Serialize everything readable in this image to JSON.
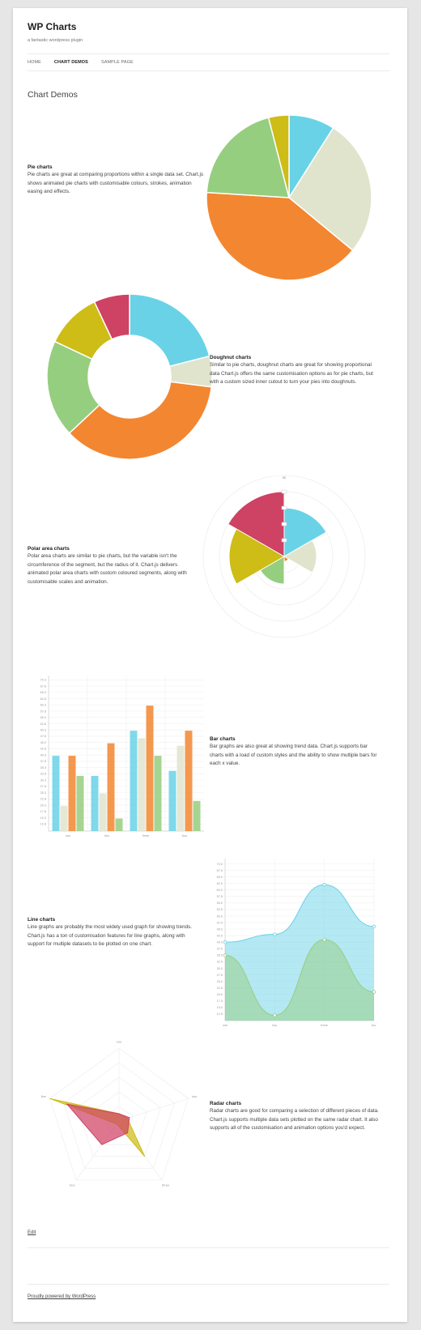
{
  "site": {
    "title": "WP Charts",
    "description": "a fantastic wordpress plugin"
  },
  "nav": {
    "items": [
      "HOME",
      "CHART DEMOS",
      "SAMPLE PAGE"
    ],
    "current": "CHART DEMOS"
  },
  "page_title": "Chart Demos",
  "colors": {
    "blue": "#69D2E7",
    "beige": "#E0E4CC",
    "orange": "#F38630",
    "green": "#96CE7F",
    "yellow": "#CEBC17",
    "red": "#CE4264"
  },
  "sections": {
    "pie": {
      "title": "Pie charts",
      "text": "Pie charts are great at comparing proportions within a single data set.  Chart.js shows animated pie charts with customisable colours, strokes, animation easing and effects."
    },
    "doughnut": {
      "title": "Doughnut charts",
      "text": "Similar to pie charts, doughnut charts are great for showing proportional data Chart.js offers the same customisation options as for pie charts, but with a custom sized inner cutout to turn your pies into doughnuts."
    },
    "polar": {
      "title": "Polar area charts",
      "text": "Polar area charts are similar to pie charts, but the variable isn't the circumference of the segment, but the radius of it. Chart.js delivers animated polar area charts with custom coloured segments, along with customisable scales and animation."
    },
    "bar": {
      "title": "Bar charts",
      "text": "Bar graphs are also great at showing trend data. Chart.js supports bar charts with a load of custom styles and the ability to show multiple bars for each x value."
    },
    "line": {
      "title": "Line charts",
      "text": "Line graphs are probably the most widely used graph for showing trends. Chart.js has a ton of customisation features for line graphs, along with support for multiple datasets to be plotted on one chart."
    },
    "radar": {
      "title": "Radar charts",
      "text": "Radar charts are good for comparing a selection of different pieces of data. Chart.js supports multiple data sets plotted on the same radar chart. It also supports all of the customisation and animation options you'd expect."
    }
  },
  "edit_label": "Edit",
  "footer_text": "Proudly powered by WordPress",
  "chart_data": [
    {
      "type": "pie",
      "title": "",
      "colors": [
        "#69D2E7",
        "#E0E4CC",
        "#F38630",
        "#96CE7F",
        "#CEBC17"
      ],
      "values": [
        9,
        27,
        40,
        20,
        4
      ]
    },
    {
      "type": "pie",
      "subtype": "doughnut",
      "title": "",
      "colors": [
        "#69D2E7",
        "#E0E4CC",
        "#F38630",
        "#96CE7F",
        "#CEBC17",
        "#CE4264"
      ],
      "values": [
        21,
        6,
        36,
        19,
        11,
        7
      ]
    },
    {
      "type": "polar",
      "title": "",
      "colors": [
        "#69D2E7",
        "#E0E4CC",
        "#F38630",
        "#96CE7F",
        "#CEBC17",
        "#CE4264"
      ],
      "values": [
        30,
        20,
        3,
        17,
        34,
        40
      ],
      "scale_max": 50,
      "scale_label": "50"
    },
    {
      "type": "bar",
      "title": "",
      "categories": [
        "one",
        "two",
        "three",
        "four"
      ],
      "series": [
        {
          "color": "#69D2E7",
          "values": [
            40,
            32,
            50,
            34
          ]
        },
        {
          "color": "#E0E4CC",
          "values": [
            20,
            25,
            47,
            44
          ]
        },
        {
          "color": "#F38630",
          "values": [
            40,
            45,
            60,
            50
          ]
        },
        {
          "color": "#96CE7F",
          "values": [
            32,
            15,
            40,
            22
          ]
        }
      ],
      "y_ticks": [
        "12.8",
        "15.3",
        "17.8",
        "20.3",
        "22.8",
        "25.3",
        "27.8",
        "30.3",
        "32.8",
        "35.3",
        "37.8",
        "40.3",
        "42.8",
        "45.3",
        "47.8",
        "50.3",
        "52.8",
        "55.3",
        "57.8",
        "60.3",
        "62.8",
        "65.3",
        "67.8",
        "70.3"
      ],
      "ylim": [
        10,
        72
      ]
    },
    {
      "type": "area",
      "title": "",
      "categories": [
        "one",
        "two",
        "three",
        "four"
      ],
      "series": [
        {
          "color": "#69D2E7",
          "values": [
            40,
            43,
            62,
            46
          ]
        },
        {
          "color": "#96CE7F",
          "values": [
            35,
            12,
            41,
            21
          ]
        }
      ],
      "y_ticks": [
        "12.5",
        "15.0",
        "17.5",
        "20.0",
        "22.5",
        "25.0",
        "27.5",
        "30.0",
        "32.5",
        "35.0",
        "37.5",
        "40.0",
        "42.5",
        "45.0",
        "47.5",
        "50.0",
        "52.5",
        "55.0",
        "57.5",
        "60.0",
        "62.5",
        "65.0",
        "67.5",
        "70.0"
      ],
      "ylim": [
        10,
        72
      ]
    },
    {
      "type": "radar",
      "title": "",
      "categories": [
        "one",
        "two",
        "three",
        "four",
        "five"
      ],
      "series": [
        {
          "color": "#CEBC17",
          "values": [
            10,
            12,
            60,
            5,
            100
          ]
        },
        {
          "color": "#CE4264",
          "values": [
            10,
            15,
            20,
            40,
            75
          ]
        }
      ],
      "r_max": 100
    }
  ]
}
